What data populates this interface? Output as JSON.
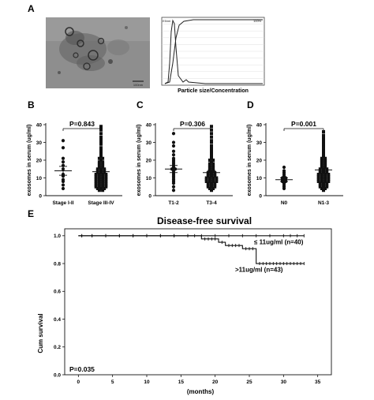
{
  "panel_labels": {
    "A": "A",
    "B": "B",
    "C": "C",
    "D": "D",
    "E": "E"
  },
  "panel_a": {
    "micrograph": {
      "scale_text": "100nm"
    },
    "nta": {
      "xlabel": "Particle size/Concentration",
      "left_axis_label": "E5/ml",
      "right_axis_label": "100%"
    }
  },
  "chart_data": [
    {
      "type": "scatter",
      "panel": "B",
      "ylabel": "exosomes in serum (ug/ml)",
      "ylim": [
        0,
        40
      ],
      "yticks": [
        0,
        10,
        20,
        30,
        40
      ],
      "categories": [
        "Stage I-II",
        "Stage III-IV"
      ],
      "markers": [
        "circle",
        "square"
      ],
      "means": [
        14.0,
        13.5
      ],
      "sem": [
        2.5,
        1.0
      ],
      "p_value": "P=0.843",
      "series": [
        {
          "values": [
            31,
            27,
            21,
            19,
            17,
            15,
            12,
            11,
            9,
            8,
            6,
            4
          ]
        },
        {
          "values": [
            39,
            38,
            37,
            35,
            33,
            32,
            31,
            30,
            29,
            27,
            26,
            25,
            24,
            23,
            22,
            21,
            21,
            20,
            19,
            19,
            18,
            18,
            17,
            17,
            16,
            16,
            15,
            15,
            15,
            14,
            14,
            14,
            13,
            13,
            13,
            12,
            12,
            12,
            12,
            11,
            11,
            11,
            11,
            10,
            10,
            10,
            10,
            9,
            9,
            9,
            9,
            8,
            8,
            8,
            8,
            7,
            7,
            7,
            7,
            6,
            6,
            6,
            6,
            5,
            5,
            5,
            5,
            4,
            4,
            4,
            3,
            3
          ]
        }
      ]
    },
    {
      "type": "scatter",
      "panel": "C",
      "ylabel": "exosomes in serum (ug/ml)",
      "ylim": [
        0,
        40
      ],
      "yticks": [
        0,
        10,
        20,
        30,
        40
      ],
      "categories": [
        "T1-2",
        "T3-4"
      ],
      "markers": [
        "circle",
        "square"
      ],
      "means": [
        15.0,
        13.0
      ],
      "sem": [
        2.0,
        1.2
      ],
      "p_value": "P=0.306",
      "series": [
        {
          "values": [
            35,
            30,
            28,
            25,
            23,
            21,
            20,
            19,
            18,
            17,
            16,
            15,
            15,
            14,
            13,
            12,
            11,
            10,
            9,
            8,
            7,
            5,
            3
          ]
        },
        {
          "values": [
            39,
            37,
            35,
            33,
            31,
            30,
            28,
            27,
            26,
            25,
            24,
            23,
            22,
            21,
            20,
            20,
            19,
            18,
            18,
            17,
            17,
            16,
            16,
            15,
            15,
            14,
            14,
            13,
            13,
            13,
            12,
            12,
            12,
            11,
            11,
            11,
            10,
            10,
            10,
            10,
            9,
            9,
            9,
            9,
            8,
            8,
            8,
            8,
            7,
            7,
            7,
            6,
            6,
            6,
            5,
            5,
            5,
            4,
            4,
            3
          ]
        }
      ]
    },
    {
      "type": "scatter",
      "panel": "D",
      "ylabel": "exosomes in serum (ug/ml)",
      "ylim": [
        0,
        40
      ],
      "yticks": [
        0,
        10,
        20,
        30,
        40
      ],
      "categories": [
        "N0",
        "N1-3"
      ],
      "markers": [
        "circle",
        "square"
      ],
      "means": [
        9.0,
        14.5
      ],
      "sem": [
        1.0,
        1.1
      ],
      "p_value": "P=0.001",
      "series": [
        {
          "values": [
            16,
            14,
            13,
            12,
            11,
            10,
            10,
            9,
            9,
            8,
            8,
            7,
            6,
            5,
            4
          ]
        },
        {
          "values": [
            36,
            34,
            33,
            32,
            31,
            30,
            29,
            28,
            27,
            26,
            25,
            24,
            23,
            22,
            21,
            21,
            20,
            20,
            19,
            19,
            18,
            18,
            17,
            17,
            16,
            16,
            15,
            15,
            15,
            14,
            14,
            14,
            13,
            13,
            13,
            12,
            12,
            12,
            12,
            11,
            11,
            11,
            11,
            10,
            10,
            10,
            10,
            9,
            9,
            9,
            9,
            8,
            8,
            8,
            8,
            7,
            7,
            7,
            6,
            6,
            6,
            5,
            5,
            5,
            4,
            4,
            3
          ]
        }
      ]
    },
    {
      "type": "line",
      "panel": "E",
      "title": "Disease-free survival",
      "xlabel": "(months)",
      "ylabel": "Cum survival",
      "xlim": [
        -2,
        37
      ],
      "ylim": [
        0,
        1.05
      ],
      "xticks": [
        0,
        5,
        10,
        15,
        20,
        25,
        30,
        35
      ],
      "yticks": [
        "0.0",
        "0.2",
        "0.4",
        "0.6",
        "0.8",
        "1.0"
      ],
      "p_value": "P=0.035",
      "series": [
        {
          "name": "≤ 11ug/ml (n=40)",
          "x": [
            0,
            33
          ],
          "y": [
            1.0,
            1.0
          ],
          "censor": [
            0.5,
            2,
            4,
            6,
            8,
            10,
            12,
            14,
            16,
            18,
            20,
            22,
            24,
            26,
            28,
            30,
            31,
            32,
            33
          ]
        },
        {
          "name": ">11ug/ml (n=43)",
          "x": [
            0,
            18,
            20.5,
            21.5,
            24,
            26,
            33
          ],
          "y": [
            1.0,
            0.977,
            0.953,
            0.93,
            0.907,
            0.8,
            0.8
          ],
          "censor": [
            0.5,
            2,
            4,
            6,
            8,
            10,
            12,
            14,
            16,
            17,
            18.5,
            19,
            19.5,
            20,
            21,
            22,
            22.5,
            23,
            23.5,
            24.5,
            25,
            25.5,
            26.5,
            27,
            27.5,
            28,
            28.5,
            29,
            29.5,
            30,
            30.5,
            31,
            31.5,
            32,
            32.5,
            33
          ]
        }
      ]
    }
  ]
}
